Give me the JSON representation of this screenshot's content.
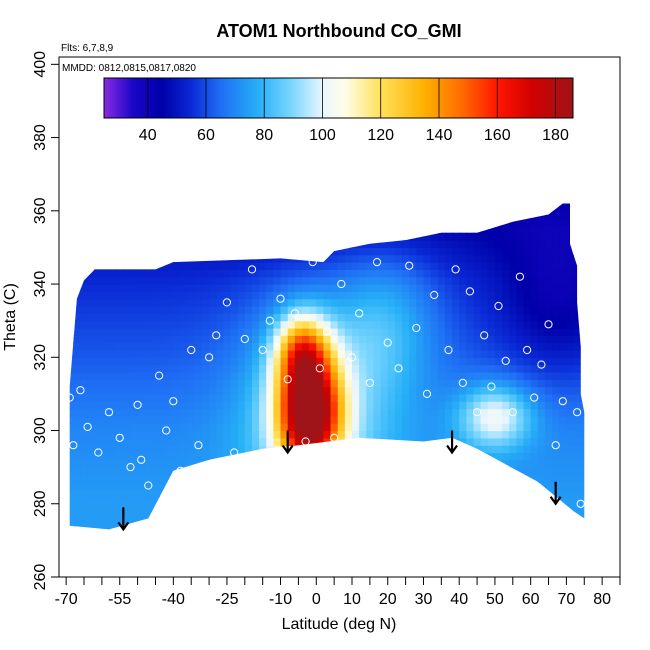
{
  "chart_data": {
    "type": "heatmap",
    "title": "ATOM1 Northbound CO_GMI",
    "flights_note": "Flts: 6,7,8,9",
    "mmdd_note": "MMDD: 0812,0815,0817,0820",
    "xlabel": "Latitude (deg N)",
    "ylabel": "Theta (C)",
    "xlim": [
      -72,
      85
    ],
    "ylim": [
      260,
      402
    ],
    "x_ticks": [
      -70,
      -55,
      -40,
      -25,
      -10,
      0,
      10,
      20,
      30,
      40,
      50,
      60,
      70,
      80
    ],
    "x_minor_ticks": [
      -65,
      -60,
      -50,
      -45,
      -35,
      -30,
      -20,
      -15,
      -5,
      5,
      15,
      25,
      35,
      45,
      55,
      65,
      75,
      85
    ],
    "y_ticks": [
      260,
      280,
      300,
      320,
      340,
      360,
      380,
      400
    ],
    "colorbar": {
      "min": 25,
      "max": 186,
      "ticks": [
        40,
        60,
        80,
        100,
        120,
        140,
        160,
        180
      ],
      "divisions": [
        40,
        60,
        80,
        100,
        120,
        140,
        160,
        180
      ],
      "stops": [
        {
          "v": 25,
          "c": "#8a2be2"
        },
        {
          "v": 35,
          "c": "#1a06c8"
        },
        {
          "v": 45,
          "c": "#0000a8"
        },
        {
          "v": 55,
          "c": "#0a2ad6"
        },
        {
          "v": 65,
          "c": "#1f6ef5"
        },
        {
          "v": 78,
          "c": "#26b0f7"
        },
        {
          "v": 90,
          "c": "#7fd8ff"
        },
        {
          "v": 100,
          "c": "#eaf6ff"
        },
        {
          "v": 108,
          "c": "#fffde6"
        },
        {
          "v": 120,
          "c": "#ffe15a"
        },
        {
          "v": 135,
          "c": "#ffb000"
        },
        {
          "v": 148,
          "c": "#ff6a00"
        },
        {
          "v": 160,
          "c": "#ff1600"
        },
        {
          "v": 172,
          "c": "#d10000"
        },
        {
          "v": 186,
          "c": "#9e1418"
        }
      ]
    },
    "field": {
      "background": 56,
      "gradient": [
        {
          "theta": 355,
          "v": 46
        },
        {
          "theta": 340,
          "v": 55
        },
        {
          "theta": 320,
          "v": 62
        },
        {
          "theta": 300,
          "v": 70
        },
        {
          "theta": 280,
          "v": 74
        }
      ],
      "features": [
        {
          "name": "tropical-plume-core",
          "lat": -2,
          "theta": 305,
          "slat": 6,
          "stheta": 11,
          "amp": 118
        },
        {
          "name": "tropical-plume-upper",
          "lat": -4,
          "theta": 322,
          "slat": 5,
          "stheta": 7,
          "amp": 55
        },
        {
          "name": "tropical-halo",
          "lat": 0,
          "theta": 310,
          "slat": 14,
          "stheta": 20,
          "amp": 28
        },
        {
          "name": "nh-midlat-pocket",
          "lat": 50,
          "theta": 304,
          "slat": 7,
          "stheta": 6,
          "amp": 35
        },
        {
          "name": "nh-upper-light",
          "lat": 20,
          "theta": 330,
          "slat": 10,
          "stheta": 14,
          "amp": 18
        },
        {
          "name": "nh-arctic-dark",
          "lat": 68,
          "theta": 335,
          "slat": 12,
          "stheta": 15,
          "amp": -15
        }
      ]
    },
    "domain_top": [
      [
        -69,
        312
      ],
      [
        -67,
        336
      ],
      [
        -65,
        341
      ],
      [
        -62,
        344
      ],
      [
        -45,
        344
      ],
      [
        -40,
        346
      ],
      [
        -10,
        347
      ],
      [
        2,
        346
      ],
      [
        5,
        349
      ],
      [
        15,
        351
      ],
      [
        25,
        352
      ],
      [
        35,
        354
      ],
      [
        45,
        354
      ],
      [
        55,
        357
      ],
      [
        65,
        359
      ],
      [
        69,
        362
      ],
      [
        71,
        362
      ],
      [
        71,
        351
      ],
      [
        72,
        348
      ],
      [
        73,
        345
      ],
      [
        73,
        335
      ],
      [
        74,
        323
      ],
      [
        74,
        310
      ],
      [
        75,
        305
      ],
      [
        75,
        276
      ]
    ],
    "domain_bottom": [
      [
        75,
        276
      ],
      [
        72,
        278
      ],
      [
        62,
        286
      ],
      [
        45,
        295
      ],
      [
        38,
        298
      ],
      [
        30,
        297
      ],
      [
        12,
        298
      ],
      [
        -5,
        296
      ],
      [
        -15,
        295
      ],
      [
        -30,
        292
      ],
      [
        -40,
        289
      ],
      [
        -47,
        276
      ],
      [
        -58,
        273
      ],
      [
        -69,
        274
      ]
    ],
    "samples_lat": [
      -69,
      -68,
      -66,
      -64,
      -61,
      -58,
      -55,
      -52,
      -50,
      -49,
      -47,
      -44,
      -42,
      -40,
      -38,
      -35,
      -33,
      -30,
      -28,
      -25,
      -23,
      -20,
      -18,
      -15,
      -13,
      -10,
      -8,
      -6,
      -3,
      -1,
      1,
      3,
      5,
      7,
      10,
      12,
      15,
      17,
      20,
      23,
      26,
      28,
      31,
      33,
      35,
      37,
      39,
      41,
      43,
      45,
      47,
      49,
      51,
      53,
      55,
      57,
      59,
      61,
      63,
      65,
      67,
      69,
      71,
      73,
      74
    ],
    "samples_theta": [
      309,
      296,
      311,
      301,
      294,
      305,
      298,
      290,
      307,
      292,
      285,
      315,
      300,
      308,
      289,
      322,
      296,
      320,
      326,
      335,
      294,
      325,
      344,
      322,
      330,
      336,
      314,
      332,
      297,
      346,
      317,
      327,
      298,
      340,
      320,
      332,
      313,
      346,
      324,
      317,
      345,
      328,
      310,
      337,
      296,
      322,
      344,
      313,
      338,
      305,
      326,
      312,
      334,
      319,
      305,
      342,
      322,
      309,
      318,
      329,
      296,
      308,
      276,
      305,
      280
    ],
    "arrows": [
      {
        "lat": -54,
        "theta": 273
      },
      {
        "lat": -8,
        "theta": 294
      },
      {
        "lat": 38,
        "theta": 294
      },
      {
        "lat": 67,
        "theta": 280
      }
    ]
  }
}
